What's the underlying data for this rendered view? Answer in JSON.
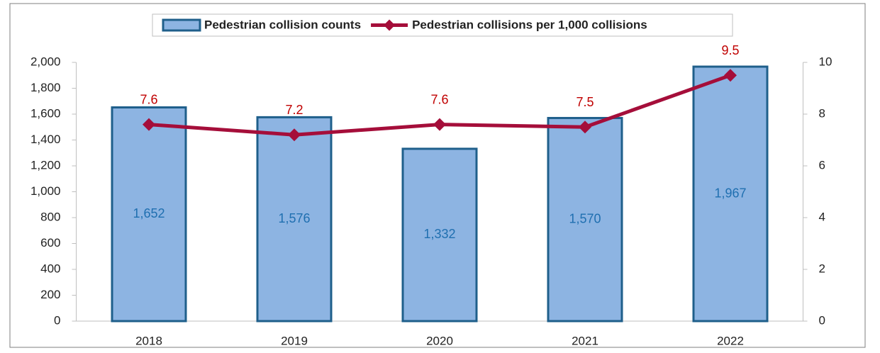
{
  "chart_data": {
    "type": "bar-line",
    "categories": [
      "2018",
      "2019",
      "2020",
      "2021",
      "2022"
    ],
    "series": [
      {
        "name": "Pedestrian collision counts",
        "type": "bar",
        "color": "#8db4e2",
        "edge_color": "#1f5f8b",
        "values": [
          1652,
          1576,
          1332,
          1570,
          1967
        ],
        "value_labels": [
          "1,652",
          "1,576",
          "1,332",
          "1,570",
          "1,967"
        ],
        "label_color": "#1f6fb0"
      },
      {
        "name": "Pedestrian collisions per 1,000 collisions",
        "type": "line",
        "axis": "y2",
        "color": "#a50e3a",
        "values": [
          7.6,
          7.2,
          7.6,
          7.5,
          9.5
        ],
        "label_color": "#c00000"
      }
    ],
    "ylim": [
      0,
      2000
    ],
    "yticks": [
      0,
      200,
      400,
      600,
      800,
      {
        "value": 1000,
        "label": "1,000"
      },
      {
        "value": 1200,
        "label": "1,200"
      },
      {
        "value": 1400,
        "label": "1,400"
      },
      {
        "value": 1600,
        "label": "1,600"
      },
      {
        "value": 1800,
        "label": "1,800"
      },
      {
        "value": 2000,
        "label": "2,000"
      }
    ],
    "y2lim": [
      0,
      10
    ],
    "y2ticks": [
      0,
      2,
      4,
      6,
      8,
      10
    ],
    "legend": "top"
  }
}
